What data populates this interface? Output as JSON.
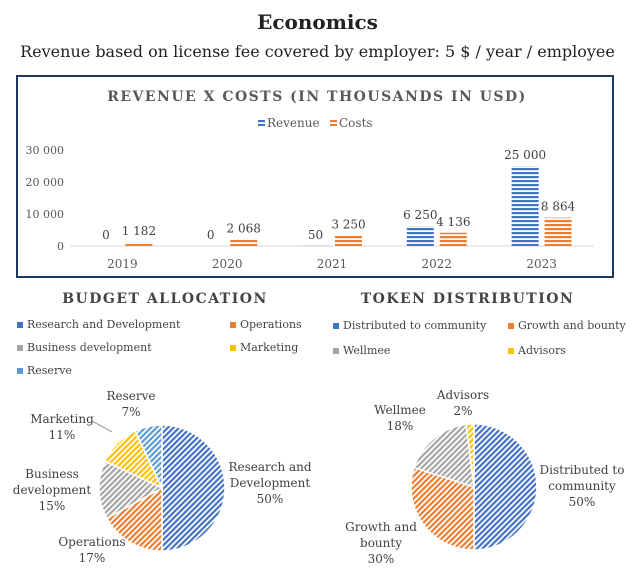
{
  "header": {
    "title": "Economics",
    "subtitle": "Revenue based on license fee covered by employer: 5 $ / year / employee"
  },
  "colors": {
    "revenue": "#4472c4",
    "costs": "#ed7d31",
    "gray": "#a5a5a5",
    "gold": "#ffc000",
    "lightblue": "#5b9bd5"
  },
  "chart_data": [
    {
      "type": "bar",
      "title": "REVENUE X COSTS (IN THOUSANDS IN USD)",
      "categories": [
        "2019",
        "2020",
        "2021",
        "2022",
        "2023"
      ],
      "series": [
        {
          "name": "Revenue",
          "values": [
            0,
            0,
            50,
            6250,
            25000
          ],
          "labels": [
            "0",
            "0",
            "50",
            "6 250",
            "25 000"
          ]
        },
        {
          "name": "Costs",
          "values": [
            1182,
            2068,
            3250,
            4136,
            8864
          ],
          "labels": [
            "1 182",
            "2 068",
            "3 250",
            "4 136",
            "8 864"
          ]
        }
      ],
      "yticks": [
        "30 000",
        "20 000",
        "10 000",
        "0"
      ],
      "ylim": [
        0,
        30000
      ],
      "legend": "top"
    },
    {
      "type": "pie",
      "title": "BUDGET ALLOCATION",
      "slices": [
        {
          "name": "Research and Development",
          "label": "Research and Development",
          "value": 50,
          "pct": "50%"
        },
        {
          "name": "Operations",
          "label": "Operations",
          "value": 17,
          "pct": "17%"
        },
        {
          "name": "Business development",
          "label": "Business development",
          "value": 15,
          "pct": "15%"
        },
        {
          "name": "Marketing",
          "label": "Marketing",
          "value": 11,
          "pct": "11%"
        },
        {
          "name": "Reserve",
          "label": "Reserve",
          "value": 7,
          "pct": "7%"
        }
      ],
      "legend": "top"
    },
    {
      "type": "pie",
      "title": "TOKEN DISTRIBUTION",
      "slices": [
        {
          "name": "Distributed to community",
          "label": "Distributed to community",
          "value": 50,
          "pct": "50%"
        },
        {
          "name": "Growth and bounty",
          "label": "Growth and bounty",
          "value": 30,
          "pct": "30%"
        },
        {
          "name": "Wellmee",
          "label": "Wellmee",
          "value": 18,
          "pct": "18%"
        },
        {
          "name": "Advisors",
          "label": "Advisors",
          "value": 2,
          "pct": "2%"
        }
      ],
      "legend": "top"
    }
  ]
}
